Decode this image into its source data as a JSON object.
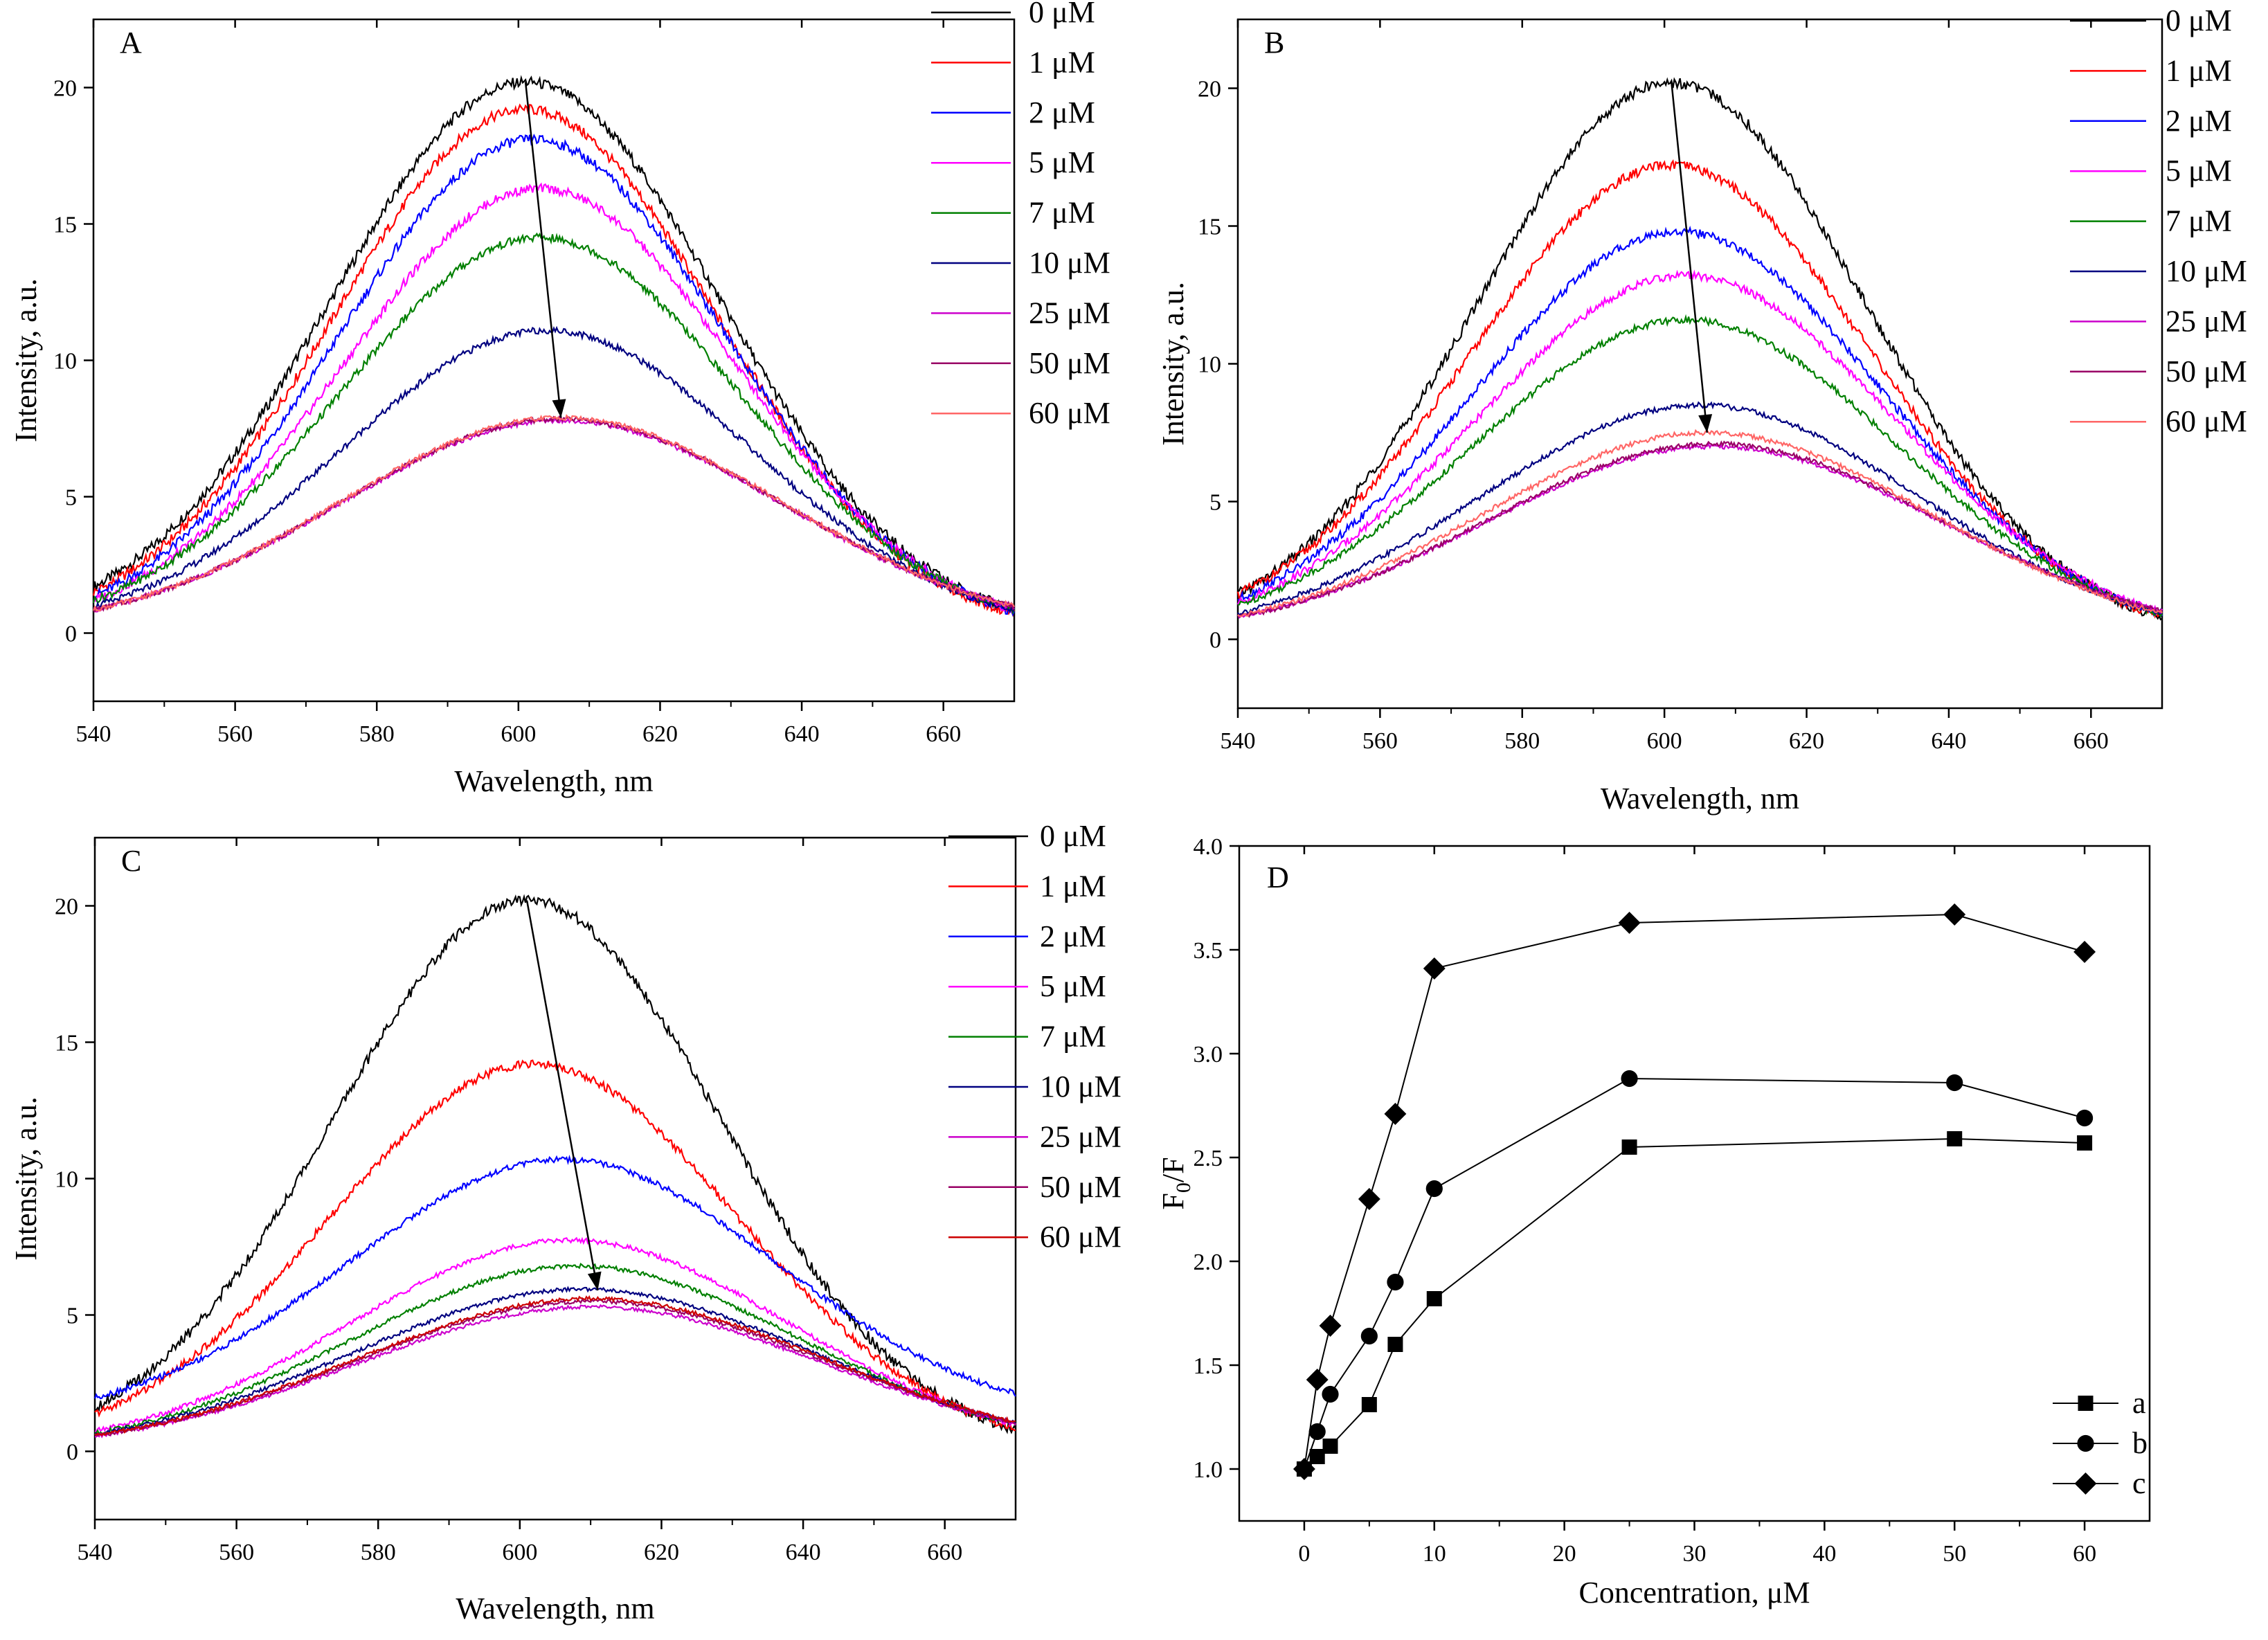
{
  "chart_data": [
    {
      "type": "line",
      "panel_label": "A",
      "xlabel": "Wavelength, nm",
      "ylabel": "Intensity, a.u.",
      "xlim": [
        540,
        670
      ],
      "ylim": [
        -2.5,
        22.5
      ],
      "xticks": [
        540,
        560,
        580,
        600,
        620,
        640,
        660
      ],
      "yticks": [
        0,
        5,
        10,
        15,
        20
      ],
      "legend_position": "top-right",
      "curve_model": "gaussian: y = baseline + peak * exp(-(x - center)^2 / (2 * sigma^2))",
      "series": [
        {
          "name": "0 μM",
          "color": "#000000",
          "peak": 20.2,
          "center": 601,
          "sigma": 27.4,
          "baseline": 0
        },
        {
          "name": "1 μM",
          "color": "#ff0000",
          "peak": 19.2,
          "center": 601,
          "sigma": 27.0,
          "baseline": 0
        },
        {
          "name": "2 μM",
          "color": "#0000ff",
          "peak": 18.1,
          "center": 602,
          "sigma": 27.2,
          "baseline": 0
        },
        {
          "name": "5 μM",
          "color": "#ff00ff",
          "peak": 16.3,
          "center": 603,
          "sigma": 27.6,
          "baseline": 0
        },
        {
          "name": "7 μM",
          "color": "#008000",
          "peak": 14.5,
          "center": 603,
          "sigma": 28.2,
          "baseline": 0
        },
        {
          "name": "10 μM",
          "color": "#000080",
          "peak": 11.1,
          "center": 604,
          "sigma": 29.0,
          "baseline": 0
        },
        {
          "name": "25 μM",
          "color": "#cc00cc",
          "peak": 7.8,
          "center": 606,
          "sigma": 31.3,
          "baseline": 0
        },
        {
          "name": "50 μM",
          "color": "#990066",
          "peak": 7.85,
          "center": 606,
          "sigma": 31.3,
          "baseline": 0
        },
        {
          "name": "60 μM",
          "color": "#ff6666",
          "peak": 7.9,
          "center": 606,
          "sigma": 31.3,
          "baseline": 0
        }
      ],
      "arrow": {
        "from": [
          601,
          20.2
        ],
        "to": [
          606,
          7.9
        ]
      }
    },
    {
      "type": "line",
      "panel_label": "B",
      "xlabel": "Wavelength, nm",
      "ylabel": "Intensity, a.u.",
      "xlim": [
        540,
        670
      ],
      "ylim": [
        -2.5,
        22.5
      ],
      "xticks": [
        540,
        560,
        580,
        600,
        620,
        640,
        660
      ],
      "yticks": [
        0,
        5,
        10,
        15,
        20
      ],
      "legend_position": "top-right",
      "curve_model": "gaussian: y = baseline + peak * exp(-(x - center)^2 / (2 * sigma^2))",
      "series": [
        {
          "name": "0 μM",
          "color": "#000000",
          "peak": 20.2,
          "center": 601,
          "sigma": 27.2,
          "baseline": 0
        },
        {
          "name": "1 μM",
          "color": "#ff0000",
          "peak": 17.2,
          "center": 601,
          "sigma": 28.1,
          "baseline": 0
        },
        {
          "name": "2 μM",
          "color": "#0000ff",
          "peak": 14.8,
          "center": 602,
          "sigma": 28.8,
          "baseline": 0
        },
        {
          "name": "5 μM",
          "color": "#ff00ff",
          "peak": 13.2,
          "center": 603,
          "sigma": 29.4,
          "baseline": 0
        },
        {
          "name": "7 μM",
          "color": "#008000",
          "peak": 11.6,
          "center": 603,
          "sigma": 29.8,
          "baseline": 0
        },
        {
          "name": "10 μM",
          "color": "#000080",
          "peak": 8.5,
          "center": 605,
          "sigma": 31.0,
          "baseline": 0
        },
        {
          "name": "25 μM",
          "color": "#cc00cc",
          "peak": 7.0,
          "center": 607,
          "sigma": 32.2,
          "baseline": 0
        },
        {
          "name": "50 μM",
          "color": "#990066",
          "peak": 7.1,
          "center": 607,
          "sigma": 32.0,
          "baseline": 0
        },
        {
          "name": "60 μM",
          "color": "#ff6666",
          "peak": 7.5,
          "center": 606,
          "sigma": 31.6,
          "baseline": 0
        }
      ],
      "arrow": {
        "from": [
          601,
          20.2
        ],
        "to": [
          606,
          7.5
        ]
      }
    },
    {
      "type": "line",
      "panel_label": "C",
      "xlabel": "Wavelength, nm",
      "ylabel": "Intensity, a.u.",
      "xlim": [
        540,
        670
      ],
      "ylim": [
        -2.5,
        22.5
      ],
      "xticks": [
        540,
        560,
        580,
        600,
        620,
        640,
        660
      ],
      "yticks": [
        0,
        5,
        10,
        15,
        20
      ],
      "legend_position": "top-right",
      "curve_model": "gaussian: y = baseline + peak * exp(-(x - center)^2 / (2 * sigma^2))",
      "series": [
        {
          "name": "0 μM",
          "color": "#000000",
          "peak": 20.2,
          "center": 601,
          "sigma": 27.2,
          "baseline": 0
        },
        {
          "name": "1 μM",
          "color": "#ff0000",
          "peak": 14.2,
          "center": 602,
          "sigma": 28.7,
          "baseline": 0
        },
        {
          "name": "2 μM",
          "color": "#0000ff",
          "peak": 9.6,
          "center": 606,
          "sigma": 30.2,
          "baseline": 1.1
        },
        {
          "name": "5 μM",
          "color": "#ff00ff",
          "peak": 7.75,
          "center": 607,
          "sigma": 31.0,
          "baseline": 0
        },
        {
          "name": "7 μM",
          "color": "#008000",
          "peak": 6.8,
          "center": 608,
          "sigma": 31.6,
          "baseline": 0
        },
        {
          "name": "10 μM",
          "color": "#000080",
          "peak": 5.95,
          "center": 609,
          "sigma": 32.6,
          "baseline": 0
        },
        {
          "name": "25 μM",
          "color": "#cc00cc",
          "peak": 5.3,
          "center": 610,
          "sigma": 33.0,
          "baseline": 0
        },
        {
          "name": "50 μM",
          "color": "#990066",
          "peak": 5.5,
          "center": 610,
          "sigma": 33.0,
          "baseline": 0
        },
        {
          "name": "60 μM",
          "color": "#cc0000",
          "peak": 5.6,
          "center": 610,
          "sigma": 33.0,
          "baseline": 0
        }
      ],
      "arrow": {
        "from": [
          601,
          20.2
        ],
        "to": [
          611,
          5.9
        ]
      }
    },
    {
      "type": "scatter",
      "panel_label": "D",
      "xlabel": "Concentration, μM",
      "ylabel_main": "F",
      "ylabel_sub": "0",
      "ylabel_tail": "/F",
      "xlim": [
        -5,
        65
      ],
      "ylim": [
        0.75,
        4.0
      ],
      "xticks": [
        0,
        10,
        20,
        30,
        40,
        50,
        60
      ],
      "yticks": [
        1.0,
        1.5,
        2.0,
        2.5,
        3.0,
        3.5,
        4.0
      ],
      "ytick_labels": [
        "1.0",
        "1.5",
        "2.0",
        "2.5",
        "3.0",
        "3.5",
        "4.0"
      ],
      "legend_position": "bottom-right",
      "x": [
        0,
        1,
        2,
        5,
        7,
        10,
        25,
        50,
        60
      ],
      "series": [
        {
          "name": "a",
          "marker": "square",
          "values": [
            1.0,
            1.06,
            1.11,
            1.31,
            1.6,
            1.82,
            2.55,
            2.59,
            2.57
          ]
        },
        {
          "name": "b",
          "marker": "circle",
          "values": [
            1.0,
            1.18,
            1.36,
            1.64,
            1.9,
            2.35,
            2.88,
            2.86,
            2.69
          ]
        },
        {
          "name": "c",
          "marker": "diamond",
          "values": [
            1.0,
            1.43,
            1.69,
            2.3,
            2.71,
            3.41,
            3.63,
            3.67,
            3.49
          ]
        }
      ]
    }
  ]
}
